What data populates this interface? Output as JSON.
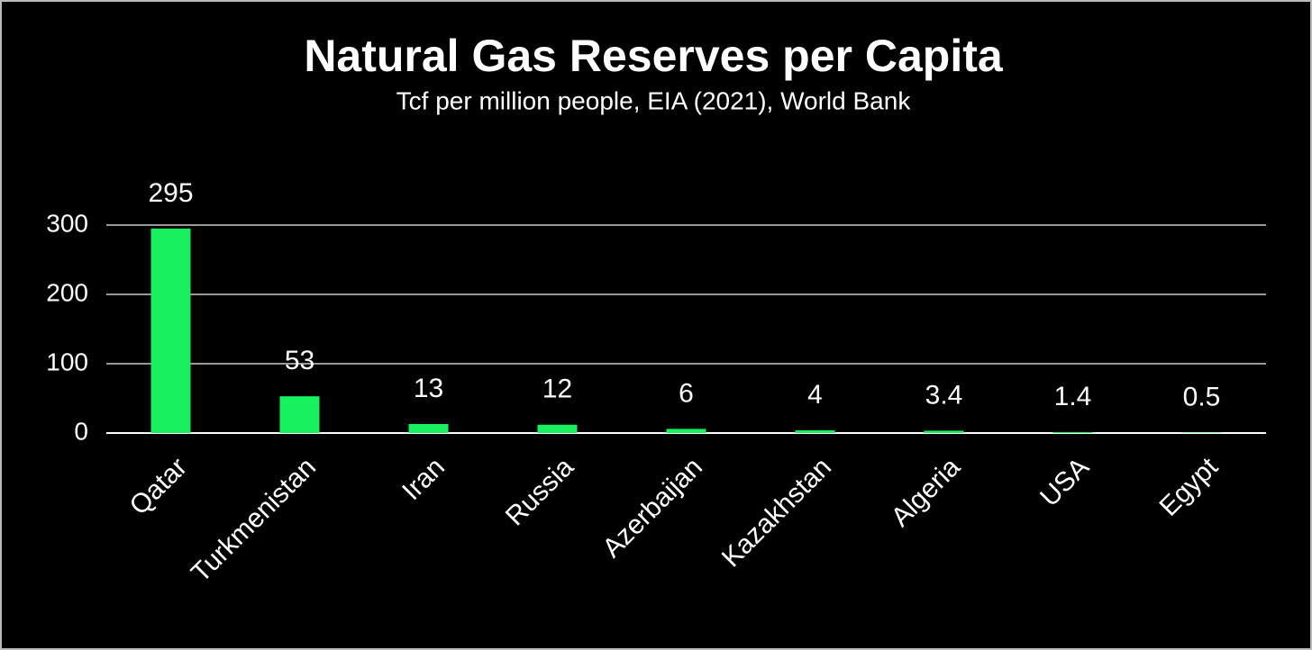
{
  "chart_data": {
    "type": "bar",
    "title": "Natural Gas Reserves per Capita",
    "subtitle": "Tcf per million people, EIA (2021), World Bank",
    "categories": [
      "Qatar",
      "Turkmenistan",
      "Iran",
      "Russia",
      "Azerbaijan",
      "Kazakhstan",
      "Algeria",
      "USA",
      "Egypt"
    ],
    "values": [
      295,
      53,
      13,
      12,
      6,
      4,
      3.4,
      1.4,
      0.5
    ],
    "color": "#17f05f",
    "ylim": [
      0,
      300
    ],
    "yticks": [
      0,
      100,
      200,
      300
    ],
    "grid": true
  }
}
